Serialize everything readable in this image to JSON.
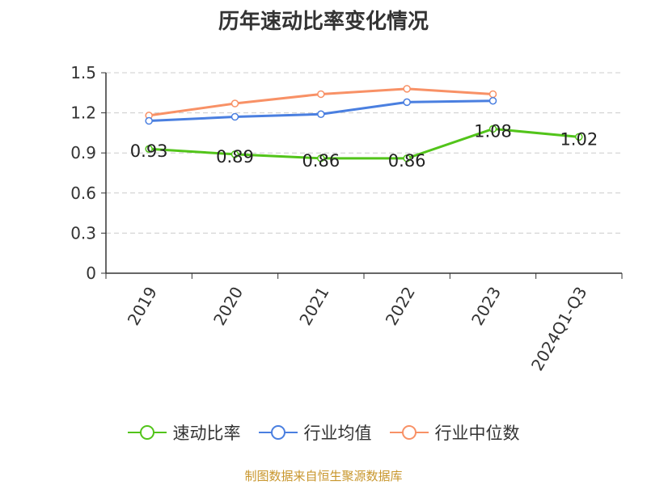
{
  "title": "历年速动比率变化情况",
  "source": "制图数据来自恒生聚源数据库",
  "colors": {
    "series0": "#52c41a",
    "series1": "#4a7fe0",
    "series2": "#f89166",
    "axis": "#333333",
    "grid": "#cccccc"
  },
  "chart_data": {
    "type": "line",
    "categories": [
      "2019",
      "2020",
      "2021",
      "2022",
      "2023",
      "2024Q1-Q3"
    ],
    "series": [
      {
        "name": "速动比率",
        "values": [
          0.93,
          0.89,
          0.86,
          0.86,
          1.08,
          1.02
        ],
        "labels": [
          "0.93",
          "0.89",
          "0.86",
          "0.86",
          "1.08",
          "1.02"
        ]
      },
      {
        "name": "行业均值",
        "values": [
          1.14,
          1.17,
          1.19,
          1.28,
          1.29,
          null
        ]
      },
      {
        "name": "行业中位数",
        "values": [
          1.18,
          1.27,
          1.34,
          1.38,
          1.34,
          null
        ]
      }
    ],
    "ylim": [
      0,
      1.5
    ],
    "yticks": [
      "0",
      "0.3",
      "0.6",
      "0.9",
      "1.2",
      "1.5"
    ],
    "ytick_values": [
      0,
      0.3,
      0.6,
      0.9,
      1.2,
      1.5
    ],
    "grid": true,
    "legend_position": "bottom"
  }
}
